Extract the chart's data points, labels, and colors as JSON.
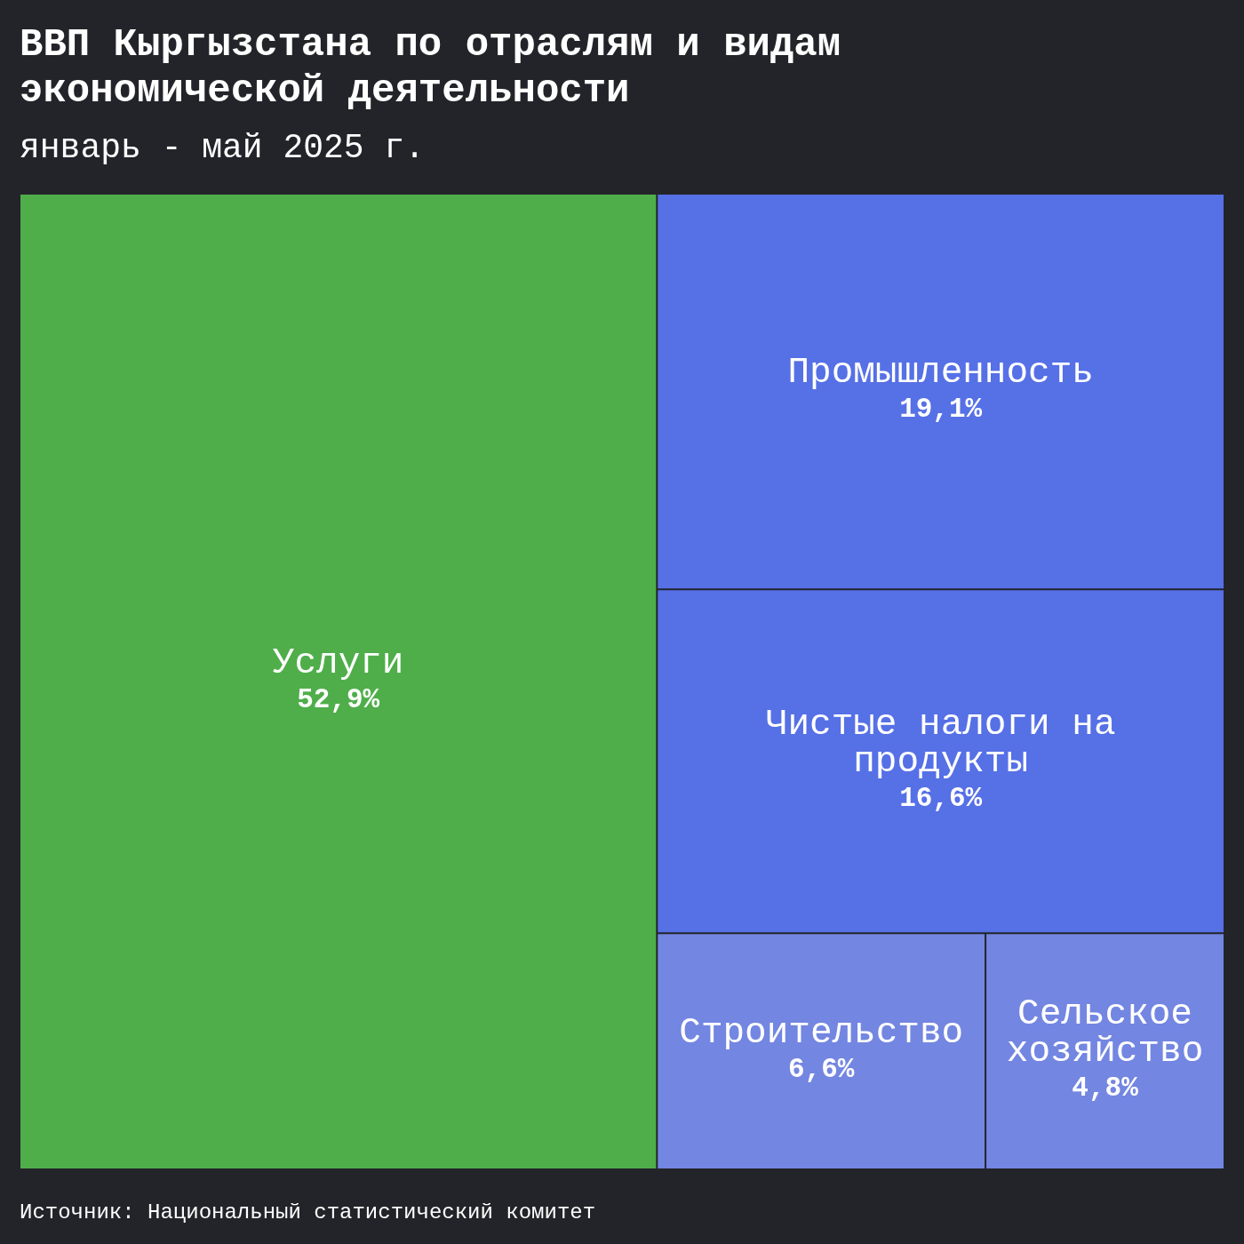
{
  "chart_data": {
    "type": "other",
    "title": "ВВП Кыргызстана по отраслям и видам экономической деятельности",
    "subtitle": "январь - май 2025 г.",
    "categories": [
      "Услуги",
      "Промышленность",
      "Чистые налоги на продукты",
      "Строительство",
      "Сельское хозяйство"
    ],
    "values": [
      52.9,
      19.1,
      16.6,
      6.6,
      4.8
    ],
    "value_labels": [
      "52,9%",
      "19,1%",
      "16,6%",
      "6,6%",
      "4,8%"
    ],
    "colors": [
      "#4fae4a",
      "#5670e6",
      "#5670e6",
      "#7386e1",
      "#7386e1"
    ],
    "annotations": [
      "Источник: Национальный статистический комитет"
    ]
  }
}
